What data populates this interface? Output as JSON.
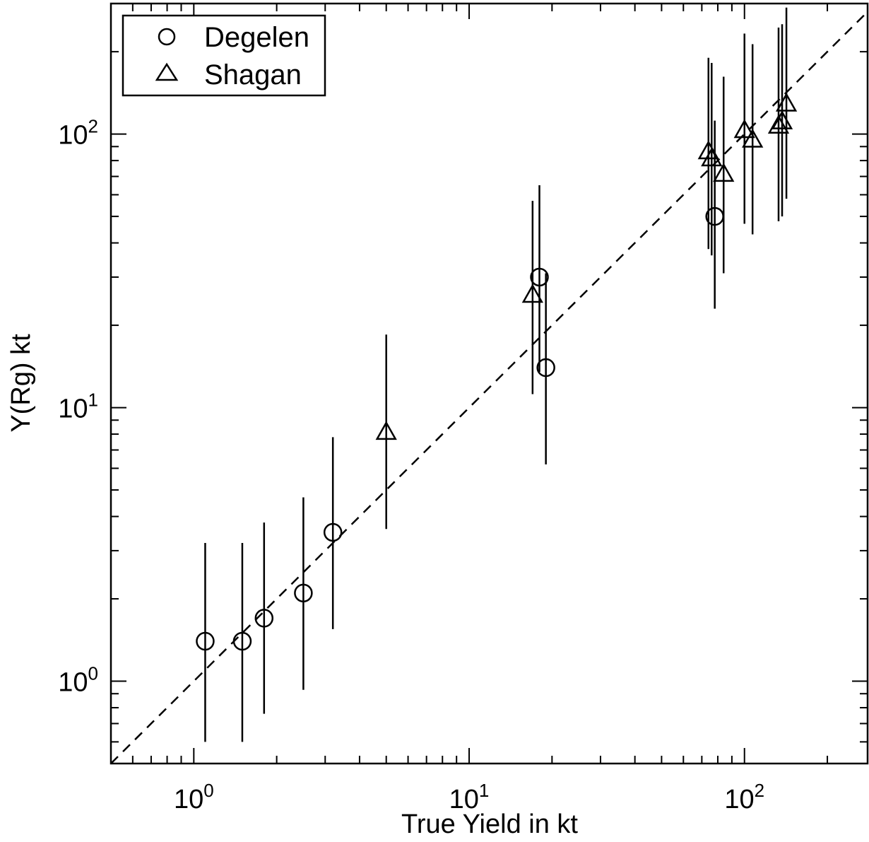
{
  "chart_data": {
    "type": "scatter",
    "xlabel": "True Yield in kt",
    "ylabel": "Y(Rg) kt",
    "x_scale": "log",
    "y_scale": "log",
    "xlim": [
      0.5,
      280
    ],
    "ylim": [
      0.5,
      300
    ],
    "x_ticks": [
      {
        "base": "10",
        "exp": "0",
        "value": 1
      },
      {
        "base": "10",
        "exp": "1",
        "value": 10
      },
      {
        "base": "10",
        "exp": "2",
        "value": 100
      }
    ],
    "y_ticks": [
      {
        "base": "10",
        "exp": "0",
        "value": 1
      },
      {
        "base": "10",
        "exp": "1",
        "value": 10
      },
      {
        "base": "10",
        "exp": "2",
        "value": 100
      }
    ],
    "grid": false,
    "legend": {
      "position": "top-left",
      "entries": [
        {
          "label": "Degelen",
          "marker": "circle"
        },
        {
          "label": "Shagan",
          "marker": "triangle"
        }
      ]
    },
    "reference_line": {
      "style": "dashed",
      "description": "y = x",
      "color": "#000000"
    },
    "series": [
      {
        "name": "Degelen",
        "marker": "circle",
        "points": [
          {
            "x": 1.1,
            "y": 1.4,
            "y_low": 0.6,
            "y_high": 3.2
          },
          {
            "x": 1.5,
            "y": 1.4,
            "y_low": 0.6,
            "y_high": 3.2
          },
          {
            "x": 1.8,
            "y": 1.7,
            "y_low": 0.76,
            "y_high": 3.8
          },
          {
            "x": 2.5,
            "y": 2.1,
            "y_low": 0.93,
            "y_high": 4.7
          },
          {
            "x": 3.2,
            "y": 3.5,
            "y_low": 1.55,
            "y_high": 7.8
          },
          {
            "x": 18,
            "y": 30,
            "y_low": 13.5,
            "y_high": 65
          },
          {
            "x": 19,
            "y": 14,
            "y_low": 6.2,
            "y_high": 31
          },
          {
            "x": 78,
            "y": 50,
            "y_low": 23,
            "y_high": 112
          }
        ]
      },
      {
        "name": "Shagan",
        "marker": "triangle",
        "points": [
          {
            "x": 5,
            "y": 8.2,
            "y_low": 3.6,
            "y_high": 18.5
          },
          {
            "x": 17,
            "y": 26,
            "y_low": 11.2,
            "y_high": 57
          },
          {
            "x": 74,
            "y": 87,
            "y_low": 38,
            "y_high": 190
          },
          {
            "x": 76,
            "y": 82,
            "y_low": 36,
            "y_high": 182
          },
          {
            "x": 84,
            "y": 72,
            "y_low": 31,
            "y_high": 162
          },
          {
            "x": 100,
            "y": 104,
            "y_low": 47,
            "y_high": 233
          },
          {
            "x": 107,
            "y": 96,
            "y_low": 43,
            "y_high": 213
          },
          {
            "x": 133,
            "y": 108,
            "y_low": 48,
            "y_high": 245
          },
          {
            "x": 137,
            "y": 112,
            "y_low": 50,
            "y_high": 252
          },
          {
            "x": 142,
            "y": 130,
            "y_low": 58,
            "y_high": 290
          }
        ]
      }
    ]
  }
}
